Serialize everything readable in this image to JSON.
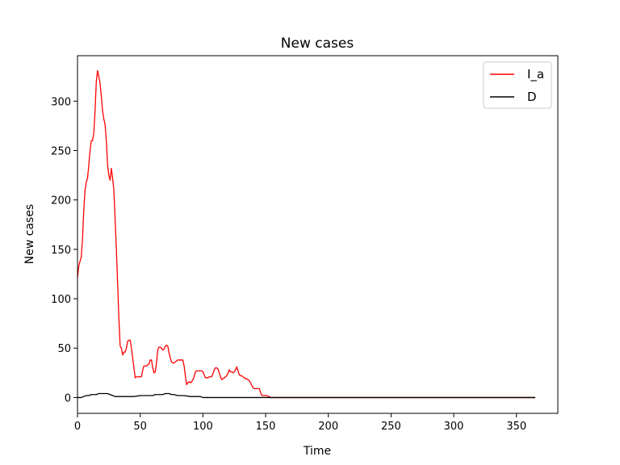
{
  "chart_data": {
    "type": "line",
    "title": "New cases",
    "xlabel": "Time",
    "ylabel": "New cases",
    "xlim": [
      0,
      383
    ],
    "ylim": [
      -16,
      346
    ],
    "xticks": [
      0,
      50,
      100,
      150,
      200,
      250,
      300,
      350
    ],
    "yticks": [
      0,
      50,
      100,
      150,
      200,
      250,
      300
    ],
    "grid": false,
    "legend": {
      "position": "top-right",
      "entries": [
        "I_a",
        "D"
      ]
    },
    "series": [
      {
        "name": "I_a",
        "color": "#ff0000",
        "x": [
          0,
          1,
          2,
          3,
          4,
          5,
          6,
          7,
          8,
          9,
          10,
          11,
          12,
          13,
          14,
          15,
          16,
          17,
          18,
          19,
          20,
          21,
          22,
          23,
          24,
          25,
          26,
          27,
          28,
          29,
          30,
          31,
          32,
          33,
          34,
          35,
          36,
          37,
          38,
          39,
          40,
          41,
          42,
          43,
          44,
          45,
          46,
          47,
          48,
          49,
          50,
          51,
          52,
          53,
          54,
          55,
          56,
          57,
          58,
          59,
          60,
          61,
          62,
          63,
          64,
          65,
          66,
          67,
          68,
          69,
          70,
          71,
          72,
          73,
          74,
          75,
          76,
          77,
          78,
          79,
          80,
          81,
          82,
          83,
          84,
          85,
          86,
          87,
          88,
          89,
          90,
          91,
          92,
          93,
          94,
          95,
          96,
          97,
          98,
          99,
          100,
          101,
          102,
          103,
          104,
          105,
          106,
          107,
          108,
          109,
          110,
          111,
          112,
          113,
          114,
          115,
          116,
          117,
          118,
          119,
          120,
          121,
          122,
          123,
          124,
          125,
          126,
          127,
          128,
          129,
          130,
          131,
          132,
          133,
          134,
          135,
          136,
          137,
          138,
          139,
          140,
          141,
          142,
          143,
          144,
          145,
          146,
          147,
          148,
          149,
          150,
          151,
          152,
          153,
          154,
          155,
          156,
          160,
          200,
          250,
          300,
          350,
          365
        ],
        "y": [
          121,
          133,
          138,
          142,
          160,
          190,
          210,
          218,
          222,
          235,
          250,
          260,
          260,
          268,
          290,
          320,
          331,
          325,
          318,
          305,
          290,
          282,
          276,
          260,
          235,
          225,
          220,
          232,
          222,
          210,
          180,
          150,
          115,
          80,
          52,
          50,
          43,
          46,
          46,
          50,
          57,
          58,
          58,
          50,
          40,
          30,
          20,
          21,
          21,
          21,
          21,
          21,
          28,
          32,
          32,
          32,
          33,
          34,
          38,
          38,
          30,
          25,
          26,
          35,
          48,
          51,
          51,
          50,
          48,
          49,
          52,
          53,
          52,
          45,
          40,
          36,
          35,
          35,
          36,
          37,
          38,
          38,
          38,
          38,
          38,
          32,
          22,
          13,
          15,
          16,
          15,
          16,
          18,
          21,
          26,
          27,
          27,
          27,
          27,
          27,
          26,
          23,
          20,
          20,
          20,
          21,
          21,
          21,
          24,
          28,
          30,
          30,
          29,
          25,
          21,
          18,
          19,
          20,
          21,
          22,
          25,
          28,
          26,
          26,
          25,
          26,
          28,
          31,
          27,
          23,
          22,
          22,
          21,
          20,
          19,
          19,
          18,
          17,
          15,
          12,
          10,
          9,
          9,
          9,
          9,
          9,
          5,
          2,
          2,
          2,
          2,
          2,
          1,
          1,
          0,
          0,
          0,
          0,
          0,
          0,
          0,
          0,
          0
        ]
      },
      {
        "name": "D",
        "color": "#000000",
        "x": [
          0,
          3,
          5,
          7,
          9,
          11,
          13,
          15,
          17,
          20,
          24,
          26,
          28,
          30,
          32,
          35,
          45,
          50,
          55,
          60,
          62,
          65,
          68,
          70,
          73,
          75,
          77,
          80,
          85,
          90,
          95,
          98,
          100,
          120,
          150,
          200,
          250,
          300,
          350,
          365
        ],
        "y": [
          0,
          0,
          1,
          2,
          2,
          3,
          3,
          3,
          4,
          4,
          4,
          3,
          2,
          1,
          1,
          1,
          1,
          2,
          2,
          2,
          3,
          3,
          3,
          4,
          4,
          3,
          3,
          2,
          2,
          1,
          1,
          1,
          0,
          0,
          0,
          0,
          0,
          0,
          0,
          0
        ]
      }
    ]
  }
}
